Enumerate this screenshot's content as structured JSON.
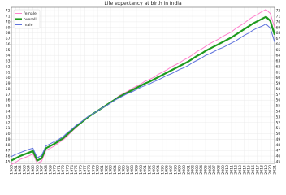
{
  "chart_data": {
    "type": "line",
    "title": "Life expectancy at birth in India",
    "x": [
      1960,
      1961,
      1962,
      1963,
      1964,
      1965,
      1966,
      1967,
      1968,
      1969,
      1970,
      1971,
      1972,
      1973,
      1974,
      1975,
      1976,
      1977,
      1978,
      1979,
      1980,
      1981,
      1982,
      1983,
      1984,
      1985,
      1986,
      1987,
      1988,
      1989,
      1990,
      1991,
      1992,
      1993,
      1994,
      1995,
      1996,
      1997,
      1998,
      1999,
      2000,
      2001,
      2002,
      2003,
      2004,
      2005,
      2006,
      2007,
      2008,
      2009,
      2010,
      2011,
      2012,
      2013,
      2014,
      2015,
      2016,
      2017,
      2018,
      2019,
      2020,
      2021
    ],
    "series": [
      {
        "name": "female",
        "color": "#ff80cc",
        "width": 1,
        "values": [
          44.5,
          44.9,
          45.4,
          45.7,
          46.0,
          46.4,
          44.7,
          45.1,
          47.0,
          47.4,
          47.8,
          48.4,
          48.9,
          49.6,
          50.4,
          51.1,
          51.8,
          52.4,
          53.0,
          53.6,
          54.1,
          54.6,
          55.2,
          55.7,
          56.2,
          56.8,
          57.2,
          57.6,
          58.1,
          58.5,
          58.9,
          59.4,
          59.7,
          60.1,
          60.6,
          61.0,
          61.4,
          61.9,
          62.3,
          62.7,
          63.2,
          63.6,
          64.1,
          64.7,
          65.1,
          65.6,
          66.1,
          66.5,
          66.9,
          67.4,
          67.8,
          68.2,
          68.8,
          69.3,
          69.8,
          70.4,
          70.9,
          71.3,
          71.8,
          72.2,
          71.5,
          69.0
        ]
      },
      {
        "name": "overall",
        "color": "#1f9a1f",
        "width": 2.2,
        "values": [
          45.2,
          45.6,
          46.0,
          46.3,
          46.6,
          46.9,
          45.2,
          45.6,
          47.4,
          47.8,
          48.2,
          48.7,
          49.2,
          49.9,
          50.6,
          51.3,
          51.9,
          52.5,
          53.1,
          53.6,
          54.1,
          54.6,
          55.1,
          55.6,
          56.1,
          56.6,
          57.0,
          57.4,
          57.8,
          58.2,
          58.6,
          59.0,
          59.3,
          59.7,
          60.1,
          60.5,
          60.9,
          61.3,
          61.7,
          62.1,
          62.5,
          62.9,
          63.4,
          63.9,
          64.3,
          64.8,
          65.2,
          65.6,
          66.0,
          66.4,
          66.8,
          67.2,
          67.7,
          68.2,
          68.7,
          69.2,
          69.7,
          70.1,
          70.5,
          70.9,
          70.2,
          67.7
        ]
      },
      {
        "name": "male",
        "color": "#5f73dd",
        "width": 1,
        "values": [
          45.9,
          46.3,
          46.6,
          46.9,
          47.2,
          47.4,
          45.7,
          46.1,
          47.8,
          48.2,
          48.6,
          49.0,
          49.5,
          50.2,
          50.8,
          51.5,
          52.0,
          52.6,
          53.2,
          53.6,
          54.1,
          54.6,
          55.0,
          55.5,
          56.0,
          56.4,
          56.8,
          57.2,
          57.5,
          57.9,
          58.3,
          58.6,
          58.9,
          59.3,
          59.6,
          60.0,
          60.4,
          60.7,
          61.1,
          61.5,
          61.8,
          62.2,
          62.7,
          63.1,
          63.5,
          64.0,
          64.3,
          64.7,
          65.1,
          65.4,
          65.8,
          66.2,
          66.6,
          67.1,
          67.6,
          68.0,
          68.5,
          68.9,
          69.2,
          69.6,
          68.9,
          66.4
        ]
      }
    ],
    "xlim": [
      1960,
      2021
    ],
    "xticks": [
      1960,
      1961,
      1962,
      1963,
      1964,
      1965,
      1966,
      1967,
      1968,
      1969,
      1970,
      1971,
      1972,
      1973,
      1974,
      1975,
      1976,
      1977,
      1978,
      1979,
      1980,
      1981,
      1982,
      1983,
      1984,
      1985,
      1986,
      1987,
      1988,
      1989,
      1990,
      1991,
      1992,
      1993,
      1994,
      1995,
      1996,
      1997,
      1998,
      1999,
      2000,
      2001,
      2002,
      2003,
      2004,
      2005,
      2006,
      2007,
      2008,
      2009,
      2010,
      2011,
      2012,
      2013,
      2014,
      2015,
      2016,
      2017,
      2018,
      2019,
      2020,
      2021
    ],
    "ylim": [
      44.7,
      72.6
    ],
    "yticks": [
      45,
      46,
      47,
      48,
      49,
      50,
      51,
      52,
      53,
      54,
      55,
      56,
      57,
      58,
      59,
      60,
      61,
      62,
      63,
      64,
      65,
      66,
      67,
      68,
      69,
      70,
      71,
      72
    ],
    "grid": true,
    "legend": "upper left"
  }
}
